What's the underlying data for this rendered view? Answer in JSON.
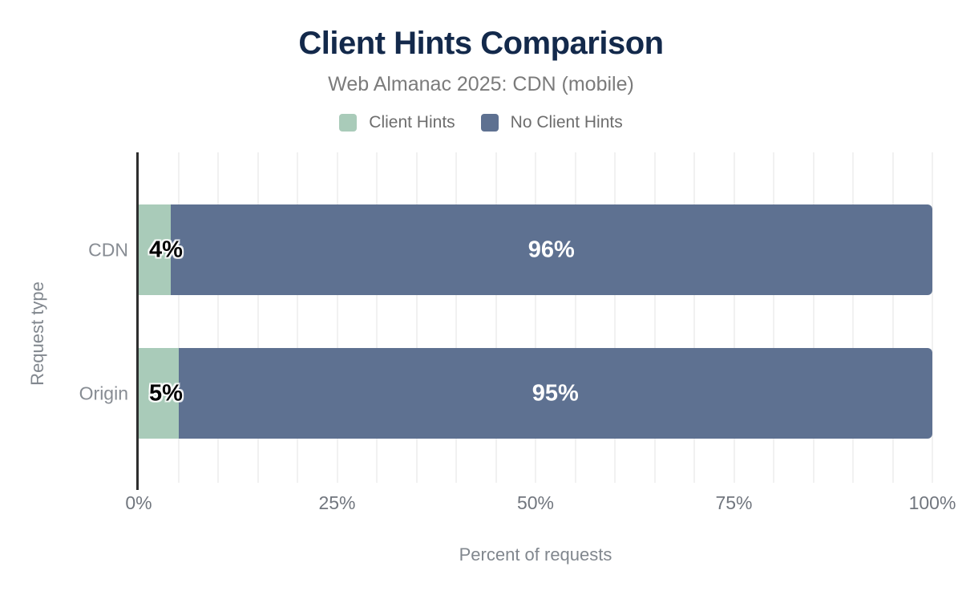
{
  "title": "Client Hints Comparison",
  "subtitle": "Web Almanac 2025: CDN (mobile)",
  "x_axis_title": "Percent of requests",
  "y_axis_title": "Request type",
  "legend": [
    {
      "label": "Client Hints",
      "color": "#a9cbb9"
    },
    {
      "label": "No Client Hints",
      "color": "#5e7191"
    }
  ],
  "colors": {
    "title": "#13294b",
    "subtitle": "#7b7b7b",
    "client_hints": "#a9cbb9",
    "no_client_hints": "#5e7191",
    "axis_line": "#2e2e2e",
    "gridline": "#f1f1f1",
    "tick_text": "#71767e"
  },
  "chart_data": {
    "type": "bar",
    "orientation": "horizontal",
    "stacked": true,
    "title": "Client Hints Comparison",
    "subtitle": "Web Almanac 2025: CDN (mobile)",
    "xlabel": "Percent of requests",
    "ylabel": "Request type",
    "categories": [
      "CDN",
      "Origin"
    ],
    "series": [
      {
        "name": "Client Hints",
        "color": "#a9cbb9",
        "values": [
          4,
          5
        ]
      },
      {
        "name": "No Client Hints",
        "color": "#5e7191",
        "values": [
          96,
          95
        ]
      }
    ],
    "data_labels": [
      {
        "category": "CDN",
        "client_hints": "4%",
        "no_client_hints": "96%"
      },
      {
        "category": "Origin",
        "client_hints": "5%",
        "no_client_hints": "95%"
      }
    ],
    "value_suffix": "%",
    "xlim": [
      0,
      100
    ],
    "x_ticks": [
      {
        "label": "0%",
        "value": 0
      },
      {
        "label": "25%",
        "value": 25
      },
      {
        "label": "50%",
        "value": 50
      },
      {
        "label": "75%",
        "value": 75
      },
      {
        "label": "100%",
        "value": 100
      }
    ],
    "gridline_step": 5,
    "grid": true,
    "legend_position": "top"
  }
}
